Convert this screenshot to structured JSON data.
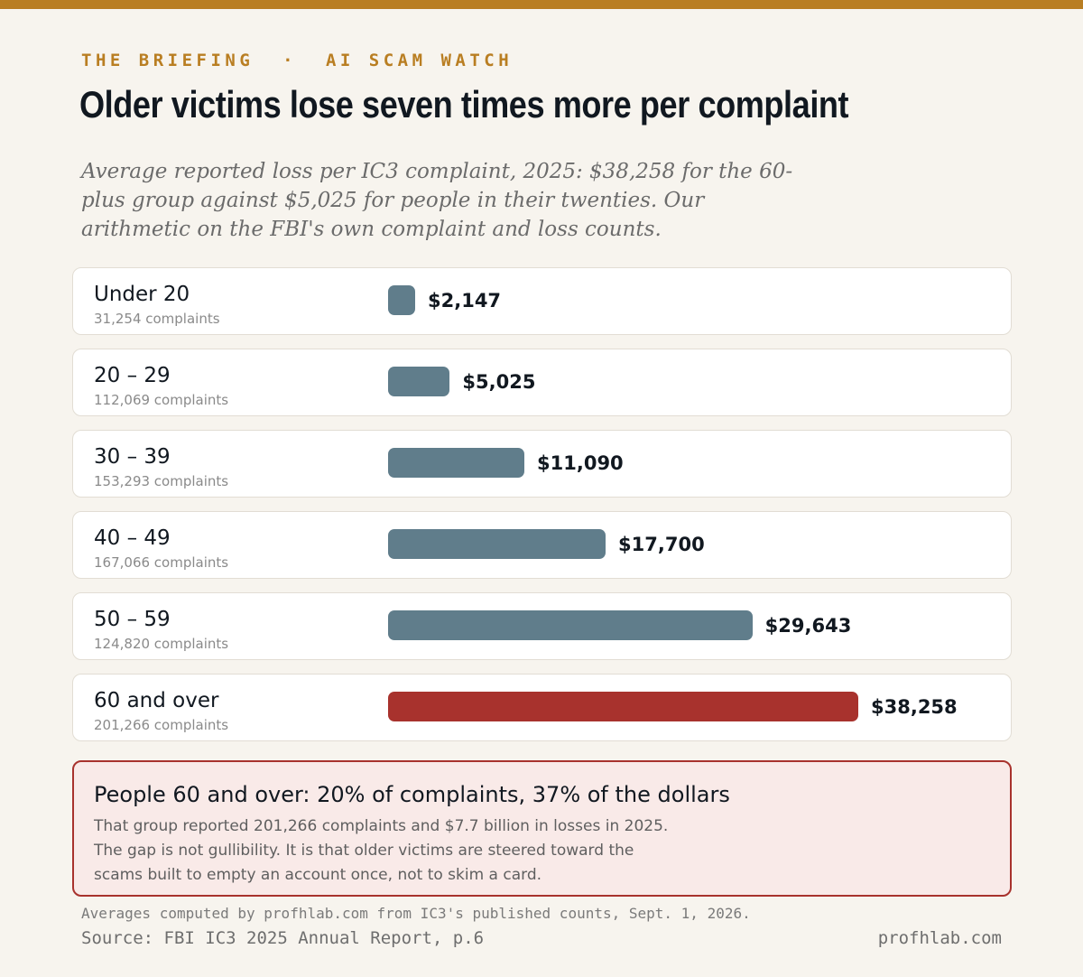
{
  "header": {
    "kicker": "THE BRIEFING  ·  AI SCAM WATCH",
    "title": "Older victims lose seven times more per complaint",
    "subtitle": "Average reported loss per IC3 complaint, 2025: $38,258 for the 60-plus group against $5,025 for people in their twenties. Our arithmetic on the FBI's own complaint and loss counts."
  },
  "colors": {
    "accent": "#b97e22",
    "bar": "#607d8b",
    "highlight": "#a8322d"
  },
  "chart_data": {
    "type": "bar",
    "orientation": "horizontal",
    "categories": [
      "Under 20",
      "20 – 29",
      "30 – 39",
      "40 – 49",
      "50 – 59",
      "60 and over"
    ],
    "complaint_counts": [
      "31,254 complaints",
      "112,069 complaints",
      "153,293 complaints",
      "167,066 complaints",
      "124,820 complaints",
      "201,266 complaints"
    ],
    "values": [
      2147,
      5025,
      11090,
      17700,
      29643,
      38258
    ],
    "value_labels": [
      "$2,147",
      "$5,025",
      "$11,090",
      "$17,700",
      "$29,643",
      "$38,258"
    ],
    "highlight_index": 5,
    "xlim": [
      0,
      38258
    ]
  },
  "callout": {
    "title": "People 60 and over: 20% of complaints, 37% of the dollars",
    "body": "That group reported 201,266 complaints and $7.7 billion in losses in 2025. The gap is not gullibility. It is that older victims are steered toward the scams built to empty an account once, not to skim a card."
  },
  "footer": {
    "note": "Averages computed by profhlab.com from IC3's published counts, Sept. 1, 2026.",
    "source": "Source: FBI IC3 2025 Annual Report, p.6",
    "brand": "profhlab.com"
  }
}
